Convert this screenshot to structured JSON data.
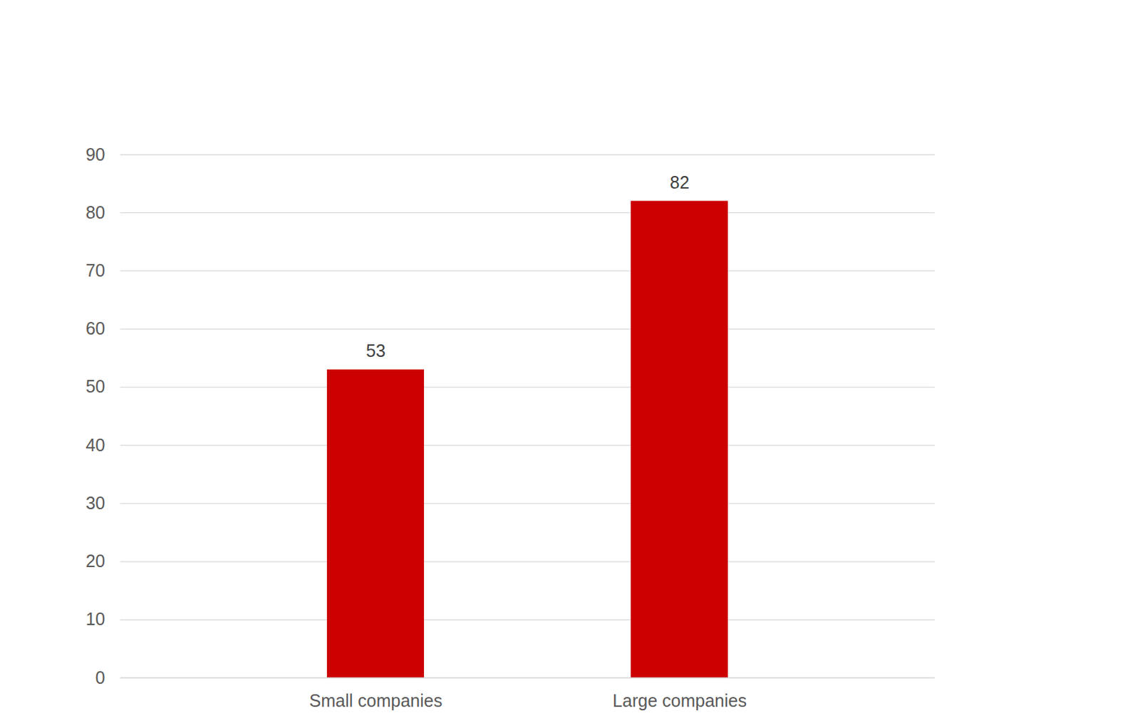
{
  "chart_data": {
    "type": "bar",
    "categories": [
      "Small companies",
      "Large companies"
    ],
    "values": [
      53,
      82
    ],
    "color": "#cc0000",
    "ylim": [
      0,
      90
    ],
    "yticks": [
      0,
      10,
      20,
      30,
      40,
      50,
      60,
      70,
      80,
      90
    ],
    "grid": true,
    "data_labels": true
  }
}
